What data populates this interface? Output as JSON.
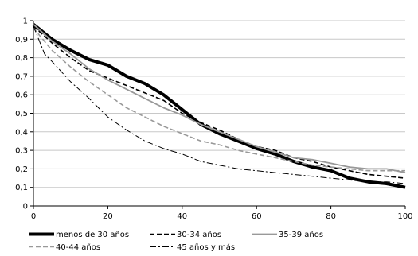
{
  "chart_data": {
    "type": "line",
    "title": "",
    "xlabel": "",
    "ylabel": "",
    "xlim": [
      0,
      100
    ],
    "ylim": [
      0,
      1
    ],
    "xticks": [
      0,
      20,
      40,
      60,
      80,
      100
    ],
    "yticks": [
      0,
      0.1,
      0.2,
      0.3,
      0.4,
      0.5,
      0.6,
      0.7,
      0.8,
      0.9,
      1
    ],
    "x_tick_labels": [
      "0",
      "20",
      "40",
      "60",
      "80",
      "100"
    ],
    "y_tick_labels": [
      "0",
      "0,1",
      "0,2",
      "0,3",
      "0,4",
      "0,5",
      "0,6",
      "0,7",
      "0,8",
      "0,9",
      "1"
    ],
    "grid": "horizontal",
    "legend_position": "bottom",
    "series": [
      {
        "name": "menos de 30 años",
        "color": "#000000",
        "style": "solid-thick",
        "x": [
          0,
          5,
          10,
          15,
          20,
          25,
          30,
          35,
          40,
          45,
          50,
          55,
          60,
          65,
          70,
          75,
          80,
          85,
          90,
          95,
          100
        ],
        "y": [
          0.98,
          0.9,
          0.84,
          0.79,
          0.76,
          0.7,
          0.66,
          0.6,
          0.52,
          0.44,
          0.39,
          0.35,
          0.31,
          0.28,
          0.24,
          0.21,
          0.19,
          0.15,
          0.13,
          0.12,
          0.1
        ]
      },
      {
        "name": "30-34 años",
        "color": "#000000",
        "style": "dashed",
        "x": [
          0,
          5,
          10,
          15,
          20,
          25,
          30,
          35,
          40,
          45,
          50,
          55,
          60,
          65,
          70,
          75,
          80,
          85,
          90,
          95,
          100
        ],
        "y": [
          0.97,
          0.88,
          0.8,
          0.73,
          0.69,
          0.65,
          0.61,
          0.57,
          0.5,
          0.45,
          0.41,
          0.36,
          0.32,
          0.3,
          0.26,
          0.24,
          0.21,
          0.19,
          0.17,
          0.16,
          0.15
        ]
      },
      {
        "name": "35-39 años",
        "color": "#999999",
        "style": "solid",
        "x": [
          0,
          5,
          10,
          15,
          20,
          25,
          30,
          35,
          40,
          45,
          50,
          55,
          60,
          65,
          70,
          75,
          80,
          85,
          90,
          95,
          100
        ],
        "y": [
          0.98,
          0.89,
          0.82,
          0.74,
          0.68,
          0.63,
          0.58,
          0.53,
          0.49,
          0.44,
          0.4,
          0.36,
          0.32,
          0.29,
          0.26,
          0.25,
          0.23,
          0.21,
          0.2,
          0.2,
          0.18
        ]
      },
      {
        "name": "40-44 años",
        "color": "#999999",
        "style": "dashed",
        "x": [
          0,
          5,
          10,
          15,
          20,
          25,
          30,
          35,
          40,
          45,
          50,
          55,
          60,
          65,
          70,
          75,
          80,
          85,
          90,
          95,
          100
        ],
        "y": [
          0.96,
          0.84,
          0.75,
          0.67,
          0.6,
          0.53,
          0.48,
          0.43,
          0.39,
          0.35,
          0.33,
          0.3,
          0.28,
          0.26,
          0.24,
          0.22,
          0.21,
          0.2,
          0.19,
          0.19,
          0.19
        ]
      },
      {
        "name": "45 años y más",
        "color": "#000000",
        "style": "dash-dot",
        "x": [
          0,
          3,
          5,
          10,
          15,
          20,
          25,
          30,
          35,
          40,
          45,
          50,
          55,
          60,
          65,
          70,
          75,
          80,
          85,
          90,
          95,
          100
        ],
        "y": [
          0.97,
          0.82,
          0.78,
          0.67,
          0.58,
          0.48,
          0.41,
          0.35,
          0.31,
          0.28,
          0.24,
          0.22,
          0.2,
          0.19,
          0.18,
          0.17,
          0.16,
          0.15,
          0.14,
          0.13,
          0.13,
          0.12
        ]
      }
    ]
  }
}
